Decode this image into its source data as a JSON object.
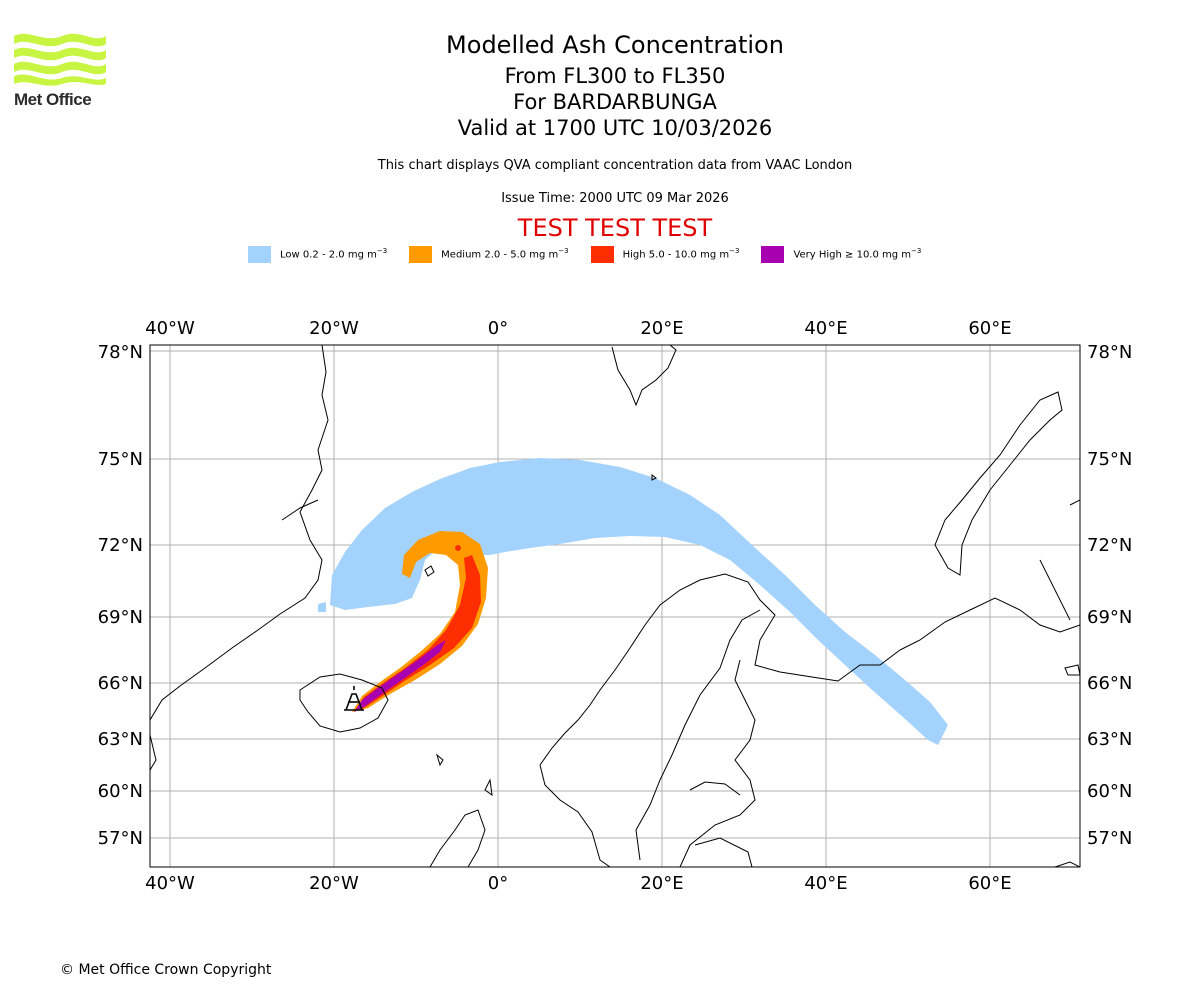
{
  "logo": {
    "text": "Met Office",
    "color": "#c8f542"
  },
  "header": {
    "title": "Modelled Ash Concentration",
    "levels": "From FL300 to FL350",
    "volcano": "For BARDARBUNGA",
    "valid": "Valid at 1700 UTC 10/03/2026",
    "description": "This chart displays QVA compliant concentration data from VAAC London",
    "issue_time": "Issue Time: 2000 UTC 09 Mar 2026",
    "test_banner": "TEST TEST TEST"
  },
  "legend": [
    {
      "label": "Low 0.2 - 2.0 mg m",
      "exp": "−3",
      "color": "#a3d2fc"
    },
    {
      "label": "Medium 2.0 - 5.0 mg m",
      "exp": "−3",
      "color": "#ff9b00"
    },
    {
      "label": "High 5.0 - 10.0 mg m",
      "exp": "−3",
      "color": "#ff2e00"
    },
    {
      "label": "Very High  ≥  10.0 mg m",
      "exp": "−3",
      "color": "#a800b0"
    }
  ],
  "map": {
    "lon_labels": [
      "40°W",
      "20°W",
      "0°",
      "20°E",
      "40°E",
      "60°E"
    ],
    "lat_labels": [
      "78°N",
      "75°N",
      "72°N",
      "69°N",
      "66°N",
      "63°N",
      "60°N",
      "57°N"
    ]
  },
  "footer": {
    "copyright": "© Met Office Crown Copyright"
  }
}
